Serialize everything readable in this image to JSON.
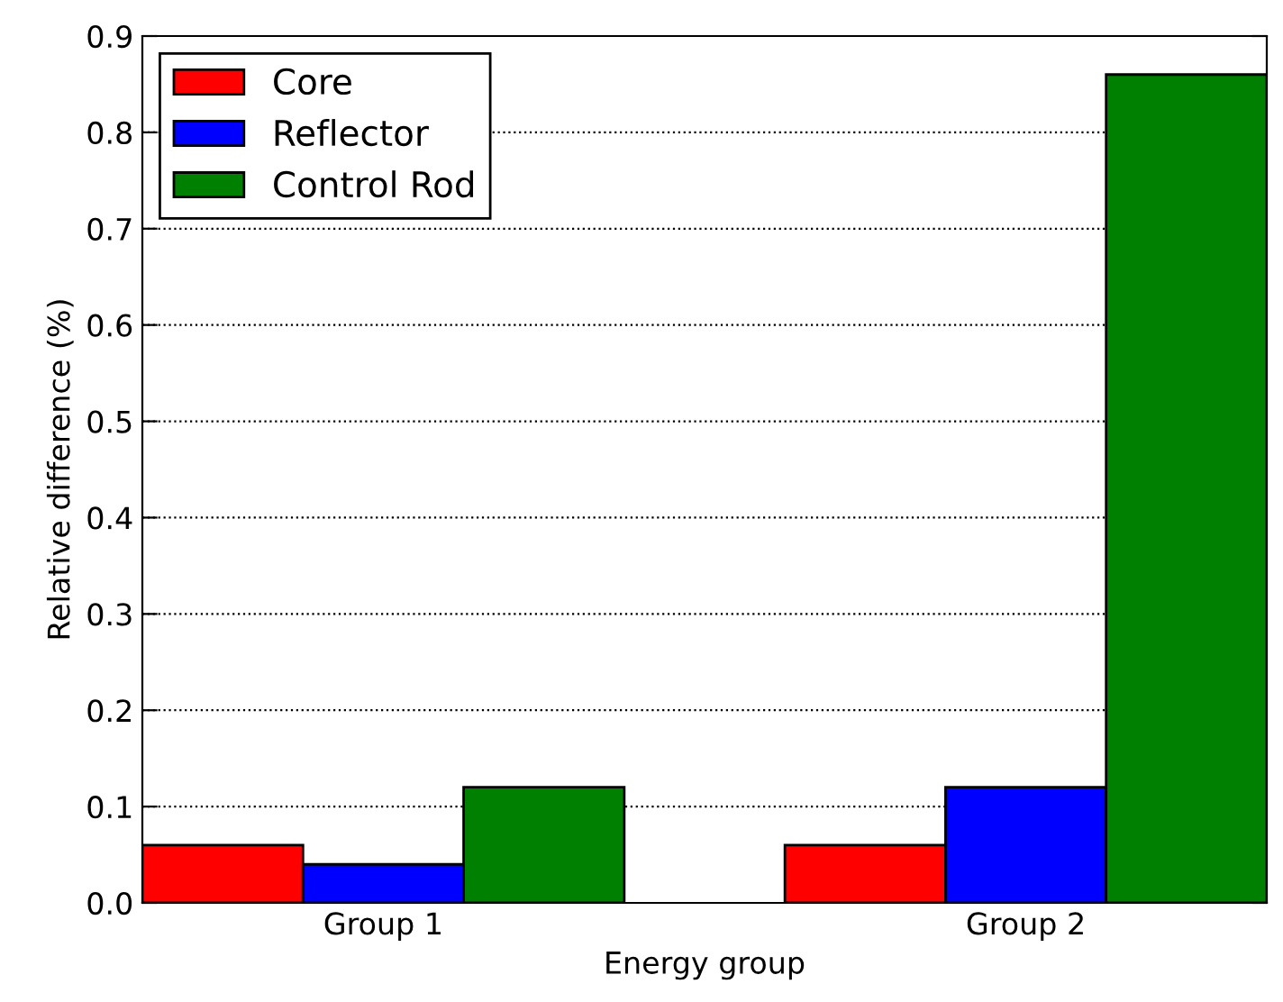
{
  "chart_data": {
    "type": "bar",
    "xlabel": "Energy group",
    "ylabel": "Relative difference (%)",
    "categories": [
      "Group 1",
      "Group 2"
    ],
    "series": [
      {
        "name": "Core",
        "color": "#ff0000",
        "values": [
          0.06,
          0.06
        ]
      },
      {
        "name": "Reflector",
        "color": "#0000ff",
        "values": [
          0.04,
          0.12
        ]
      },
      {
        "name": "Control Rod",
        "color": "#008000",
        "values": [
          0.12,
          0.86
        ]
      }
    ],
    "ylim": [
      0,
      0.9
    ],
    "yticks": [
      {
        "value": 0,
        "label": "0.0"
      },
      0.1,
      0.2,
      0.3,
      0.4,
      0.5,
      0.6,
      0.7,
      0.8,
      0.9
    ],
    "grid": "y",
    "legend": "top left"
  }
}
